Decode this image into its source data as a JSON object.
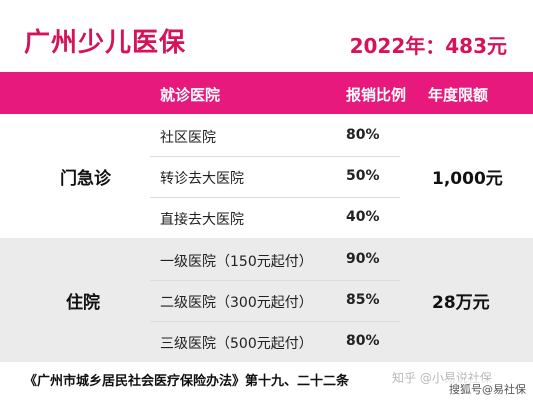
{
  "header": {
    "title": "广州少儿医保",
    "price": "2022年：483元"
  },
  "columns": {
    "hospital": "就诊医院",
    "ratio": "报销比例",
    "limit": "年度限额"
  },
  "outpatient": {
    "label": "门急诊",
    "limit": "1,000元",
    "rows": [
      {
        "hospital": "社区医院",
        "ratio": "80%"
      },
      {
        "hospital": "转诊去大医院",
        "ratio": "50%"
      },
      {
        "hospital": "直接去大医院",
        "ratio": "40%"
      }
    ]
  },
  "inpatient": {
    "label": "住院",
    "limit": "28万元",
    "rows": [
      {
        "hospital": "一级医院（150元起付）",
        "ratio": "90%"
      },
      {
        "hospital": "二级医院（300元起付）",
        "ratio": "85%"
      },
      {
        "hospital": "三级医院（500元起付）",
        "ratio": "80%"
      }
    ]
  },
  "colors": {
    "accent": "#e8197c",
    "title": "#d6125a",
    "inpatient_band": "#ebebeb"
  },
  "footer": {
    "source": "《广州市城乡居民社会医疗保险办法》第十九、二十二条"
  },
  "watermarks": {
    "zhihu": "知乎 @小易说社保",
    "sohu": "搜狐号@易社保"
  }
}
